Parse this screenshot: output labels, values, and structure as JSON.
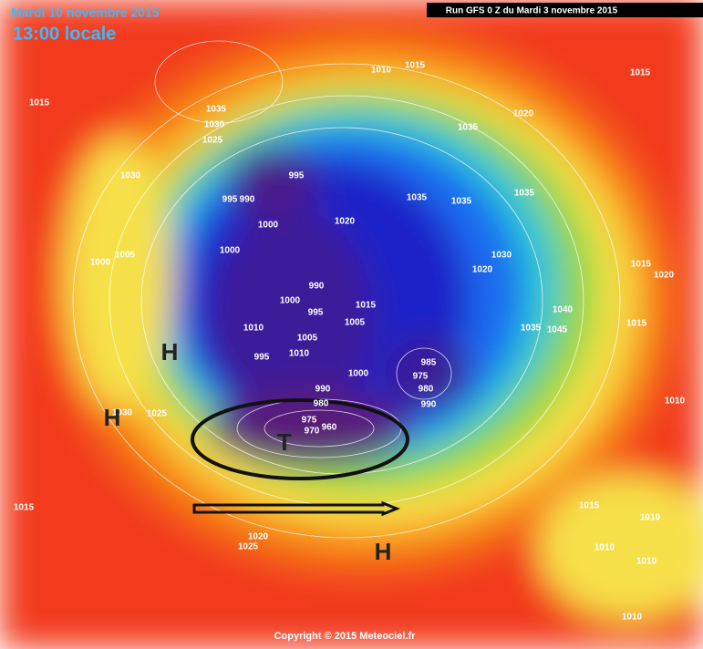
{
  "header": {
    "date": "Mardi 10 novembre 2015",
    "time": "13:00 locale",
    "run": "Run GFS 0 Z du Mardi 3 novembre 2015"
  },
  "isobar_labels": [
    1015,
    1010,
    1015,
    1015,
    1035,
    1030,
    1025,
    1035,
    1020,
    1030,
    995,
    995,
    990,
    1035,
    1035,
    1035,
    1000,
    1020,
    1000,
    1005,
    1000,
    1030,
    1020,
    1015,
    1020,
    990,
    1000,
    995,
    1015,
    1005,
    1040,
    1035,
    1045,
    1015,
    1010,
    1005,
    995,
    1010,
    985,
    1000,
    975,
    980,
    990,
    990,
    980,
    1030,
    1025,
    1010,
    975,
    970,
    960,
    1015,
    1015,
    1010,
    1020,
    1025,
    1010,
    1010,
    1010
  ],
  "systems": [
    "H",
    "H",
    "H",
    "T"
  ],
  "copyright": "Copyright © 2015 Meteociel.fr"
}
